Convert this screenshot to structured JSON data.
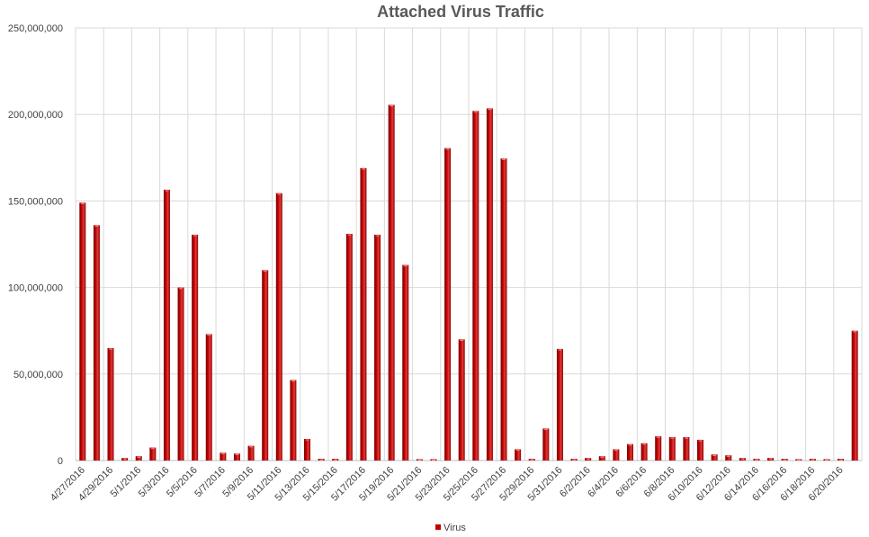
{
  "chart_data": {
    "type": "bar",
    "title": "Attached Virus Traffic",
    "xlabel": "",
    "ylabel": "",
    "ylim": [
      0,
      250000000
    ],
    "yticks": [
      0,
      50000000,
      100000000,
      150000000,
      200000000,
      250000000
    ],
    "ytick_labels": [
      "0",
      "50,000,000",
      "100,000,000",
      "150,000,000",
      "200,000,000",
      "250,000,000"
    ],
    "grid": true,
    "legend_position": "bottom",
    "series_color": "#c00000",
    "categories": [
      "4/27/2016",
      "4/28/2016",
      "4/29/2016",
      "4/30/2016",
      "5/1/2016",
      "5/2/2016",
      "5/3/2016",
      "5/4/2016",
      "5/5/2016",
      "5/6/2016",
      "5/7/2016",
      "5/8/2016",
      "5/9/2016",
      "5/10/2016",
      "5/11/2016",
      "5/12/2016",
      "5/13/2016",
      "5/14/2016",
      "5/15/2016",
      "5/16/2016",
      "5/17/2016",
      "5/18/2016",
      "5/19/2016",
      "5/20/2016",
      "5/21/2016",
      "5/22/2016",
      "5/23/2016",
      "5/24/2016",
      "5/25/2016",
      "5/26/2016",
      "5/27/2016",
      "5/28/2016",
      "5/29/2016",
      "5/30/2016",
      "5/31/2016",
      "6/1/2016",
      "6/2/2016",
      "6/3/2016",
      "6/4/2016",
      "6/5/2016",
      "6/6/2016",
      "6/7/2016",
      "6/8/2016",
      "6/9/2016",
      "6/10/2016",
      "6/11/2016",
      "6/12/2016",
      "6/13/2016",
      "6/14/2016",
      "6/15/2016",
      "6/16/2016",
      "6/17/2016",
      "6/18/2016",
      "6/19/2016",
      "6/20/2016",
      "6/21/2016"
    ],
    "shown_tick_labels": [
      "4/27/2016",
      "4/29/2016",
      "5/1/2016",
      "5/3/2016",
      "5/5/2016",
      "5/7/2016",
      "5/9/2016",
      "5/11/2016",
      "5/13/2016",
      "5/15/2016",
      "5/17/2016",
      "5/19/2016",
      "5/21/2016",
      "5/23/2016",
      "5/25/2016",
      "5/27/2016",
      "5/29/2016",
      "5/31/2016",
      "6/2/2016",
      "6/4/2016",
      "6/6/2016",
      "6/8/2016",
      "6/10/2016",
      "6/12/2016",
      "6/14/2016",
      "6/16/2016",
      "6/18/2016",
      "6/20/2016"
    ],
    "series": [
      {
        "name": "Virus",
        "values": [
          149000000,
          136000000,
          65000000,
          1500000,
          2500000,
          7500000,
          156500000,
          100000000,
          130500000,
          73000000,
          4500000,
          4000000,
          8500000,
          110000000,
          154500000,
          46500000,
          12500000,
          1000000,
          1000000,
          131000000,
          169000000,
          130500000,
          205500000,
          113000000,
          500000,
          500000,
          180500000,
          70000000,
          202000000,
          203500000,
          174500000,
          6500000,
          1000000,
          18500000,
          64500000,
          1000000,
          1500000,
          2500000,
          6500000,
          9500000,
          10000000,
          14000000,
          13500000,
          13500000,
          12000000,
          3500000,
          3000000,
          1500000,
          1000000,
          1500000,
          1000000,
          500000,
          1000000,
          500000,
          1000000,
          75000000
        ]
      }
    ]
  }
}
